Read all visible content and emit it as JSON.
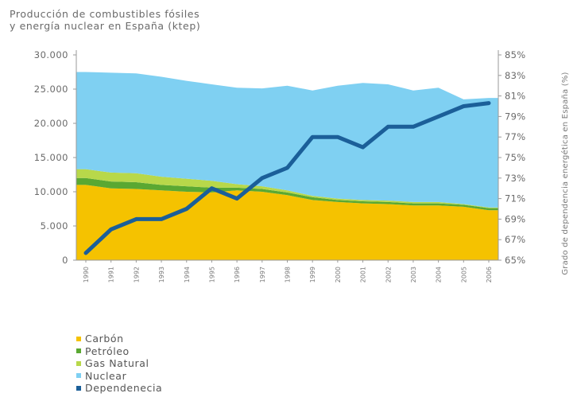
{
  "title_lines": [
    "Producción de combustibles fósiles",
    "y energía nuclear en España (ktep)"
  ],
  "colors": {
    "carbon": "#f5c200",
    "petroleo": "#5aa832",
    "gas": "#b8d84a",
    "nuclear": "#7fd0f2",
    "dependencia": "#1b5f99"
  },
  "chart_data": {
    "type": "area",
    "title": "Producción de combustibles fósiles y energía nuclear en España (ktep)",
    "x": [
      "1990",
      "1991",
      "1992",
      "1993",
      "1994",
      "1995",
      "1996",
      "1997",
      "1998",
      "1999",
      "2000",
      "2001",
      "2002",
      "2003",
      "2004",
      "2005",
      "2006"
    ],
    "stacked": true,
    "series": [
      {
        "name": "Carbón",
        "values": [
          11000,
          10500,
          10400,
          10200,
          10000,
          9900,
          10200,
          10000,
          9500,
          8800,
          8500,
          8300,
          8200,
          8000,
          8000,
          7800,
          7300
        ]
      },
      {
        "name": "Petróleo",
        "values": [
          1000,
          1000,
          1000,
          800,
          800,
          700,
          400,
          400,
          400,
          400,
          300,
          300,
          300,
          300,
          300,
          300,
          300
        ]
      },
      {
        "name": "Gas Natural",
        "values": [
          1300,
          1300,
          1300,
          1200,
          1100,
          1000,
          500,
          400,
          300,
          200,
          200,
          200,
          200,
          200,
          200,
          100,
          100
        ]
      },
      {
        "name": "Nuclear",
        "values": [
          14200,
          14600,
          14600,
          14600,
          14300,
          14100,
          14100,
          14300,
          15300,
          15400,
          16500,
          17100,
          17000,
          16300,
          16700,
          15300,
          16000
        ]
      }
    ],
    "line": {
      "name": "Dependenecia",
      "values": [
        65.7,
        68.0,
        69.0,
        69.0,
        70.0,
        72.0,
        71.0,
        73.0,
        74.0,
        77.0,
        77.0,
        76.0,
        78.0,
        78.0,
        79.0,
        80.0,
        80.3
      ],
      "axis": "right"
    },
    "y_left": {
      "ticks": [
        "30.000",
        "25.000",
        "20.000",
        "15.000",
        "10.000",
        "5.000",
        "0"
      ],
      "range": [
        0,
        30000
      ]
    },
    "y_right": {
      "ticks": [
        "85%",
        "83%",
        "81%",
        "79%",
        "77%",
        "75%",
        "73%",
        "71%",
        "69%",
        "67%",
        "65%"
      ],
      "range": [
        65,
        85
      ],
      "label": "Grado de dependencia energética en España (%)"
    },
    "legend": [
      "Carbón",
      "Petróleo",
      "Gas Natural",
      "Nuclear",
      "Dependenecia"
    ],
    "legend_placement": "bottom-left"
  }
}
